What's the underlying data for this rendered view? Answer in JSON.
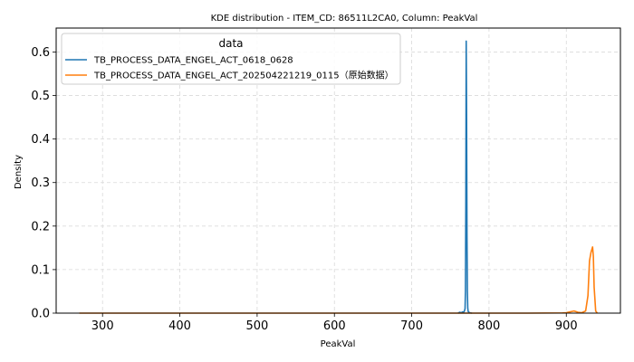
{
  "chart_data": {
    "type": "line",
    "title": "KDE distribution - ITEM_CD: 86511L2CA0, Column: PeakVal",
    "xlabel": "PeakVal",
    "ylabel": "Density",
    "xlim": [
      240,
      970
    ],
    "ylim": [
      0,
      0.655
    ],
    "xticks": [
      300,
      400,
      500,
      600,
      700,
      800,
      900
    ],
    "yticks": [
      0.0,
      0.1,
      0.2,
      0.3,
      0.4,
      0.5,
      0.6
    ],
    "grid": true,
    "legend": {
      "title": "data",
      "placement": "top-left"
    },
    "series": [
      {
        "name": "TB_PROCESS_DATA_ENGEL_ACT_0618_0628",
        "color": "#1f77b4",
        "x": [
          760,
          762,
          764,
          766,
          767,
          768,
          769,
          769.5,
          770,
          770.5,
          771,
          771.5,
          772,
          772.5,
          773,
          774,
          775,
          776,
          778
        ],
        "y": [
          0.0,
          0.002,
          0.001,
          0.003,
          0.002,
          0.004,
          0.01,
          0.05,
          0.25,
          0.625,
          0.45,
          0.18,
          0.05,
          0.012,
          0.004,
          0.002,
          0.001,
          0.0005,
          0.0
        ]
      },
      {
        "name": "TB_PROCESS_DATA_ENGEL_ACT_202504221219_0115（原始数据）",
        "color": "#ff7f0e",
        "x": [
          270,
          300,
          400,
          500,
          600,
          700,
          750,
          775,
          790,
          800,
          850,
          895,
          900,
          905,
          910,
          915,
          920,
          925,
          928,
          930,
          932,
          934,
          935,
          936,
          938,
          940
        ],
        "y": [
          0.0,
          0.0,
          0.0,
          0.0,
          0.0,
          0.0,
          0.0,
          0.0,
          0.0,
          0.0,
          0.0,
          0.0005,
          0.001,
          0.003,
          0.005,
          0.002,
          0.001,
          0.005,
          0.04,
          0.12,
          0.14,
          0.152,
          0.13,
          0.06,
          0.005,
          0.0
        ]
      }
    ]
  }
}
